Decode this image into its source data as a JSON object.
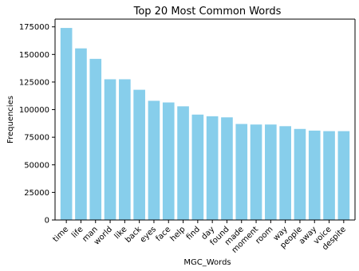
{
  "chart_data": {
    "type": "bar",
    "title": "Top 20 Most Common Words",
    "xlabel": "MGC_Words",
    "ylabel": "Frequencies",
    "categories": [
      "time",
      "life",
      "man",
      "world",
      "like",
      "back",
      "eyes",
      "face",
      "help",
      "find",
      "day",
      "found",
      "made",
      "moment",
      "room",
      "way",
      "people",
      "away",
      "voice",
      "despite"
    ],
    "values": [
      174000,
      155500,
      146000,
      127500,
      127500,
      118000,
      108000,
      106500,
      103000,
      95500,
      94000,
      93000,
      87000,
      86500,
      86500,
      85000,
      82500,
      81000,
      80500,
      80500
    ],
    "ylim": [
      0,
      182000
    ],
    "yticks": [
      0,
      25000,
      50000,
      75000,
      100000,
      125000,
      150000,
      175000
    ],
    "bar_color": "#87CEEB",
    "grid": false,
    "legend": "none"
  }
}
